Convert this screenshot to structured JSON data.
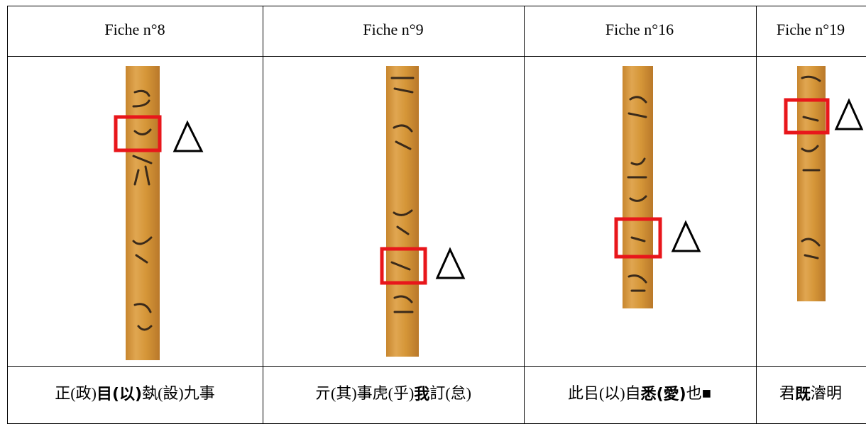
{
  "table": {
    "header": [
      "Fiche n°8",
      "Fiche n°9",
      "Fiche n°16",
      "Fiche n°19"
    ],
    "transcriptions": [
      [
        {
          "text": "正(政)"
        },
        {
          "text": "目(以)",
          "bold": true
        },
        {
          "text": "埶(設)九事"
        }
      ],
      [
        {
          "text": "亓(其)事虎(乎)"
        },
        {
          "text": "我",
          "bold": true
        },
        {
          "text": "訂"
        },
        {
          "text": "(怠)"
        }
      ],
      [
        {
          "text": "此㠯(以)自"
        },
        {
          "text": "悉(愛)",
          "bold": true
        },
        {
          "text": "也■"
        }
      ],
      [
        {
          "text": "君"
        },
        {
          "text": "既",
          "bold": true
        },
        {
          "text": "濬明"
        }
      ]
    ]
  }
}
